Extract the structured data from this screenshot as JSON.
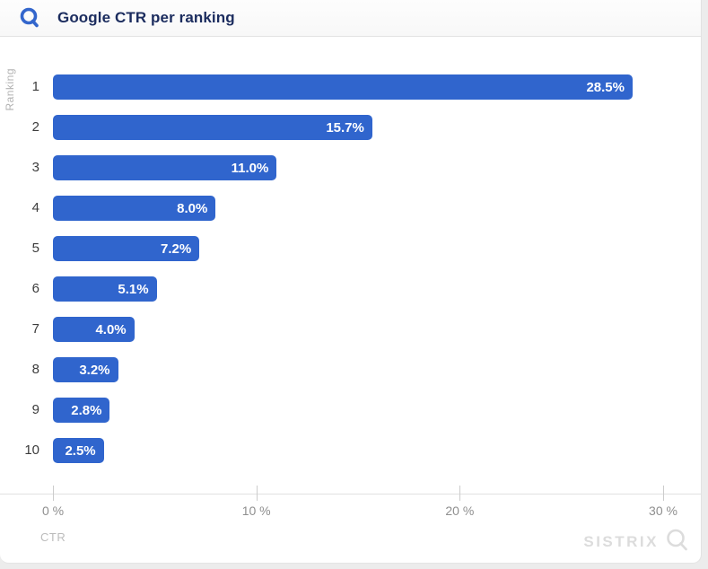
{
  "header": {
    "title": "Google CTR per ranking",
    "icon": "magnifier-icon"
  },
  "chart_data": {
    "type": "bar",
    "orientation": "horizontal",
    "title": "Google CTR per ranking",
    "categories": [
      "1",
      "2",
      "3",
      "4",
      "5",
      "6",
      "7",
      "8",
      "9",
      "10"
    ],
    "values": [
      28.5,
      15.7,
      11.0,
      8.0,
      7.2,
      5.1,
      4.0,
      3.2,
      2.8,
      2.5
    ],
    "value_labels": [
      "28.5%",
      "15.7%",
      "11.0%",
      "8.0%",
      "7.2%",
      "5.1%",
      "4.0%",
      "3.2%",
      "2.8%",
      "2.5%"
    ],
    "xlabel": "CTR",
    "ylabel": "Ranking",
    "x_ticks": [
      "0 %",
      "10 %",
      "20 %",
      "30 %"
    ],
    "x_tick_values": [
      0,
      10,
      20,
      30
    ],
    "xlim": [
      0,
      30
    ],
    "grid": false,
    "legend": false,
    "bar_color": "#3065cd",
    "value_label_color": "#ffffff"
  },
  "watermark": {
    "text": "SISTRIX",
    "icon": "magnifier-icon"
  }
}
